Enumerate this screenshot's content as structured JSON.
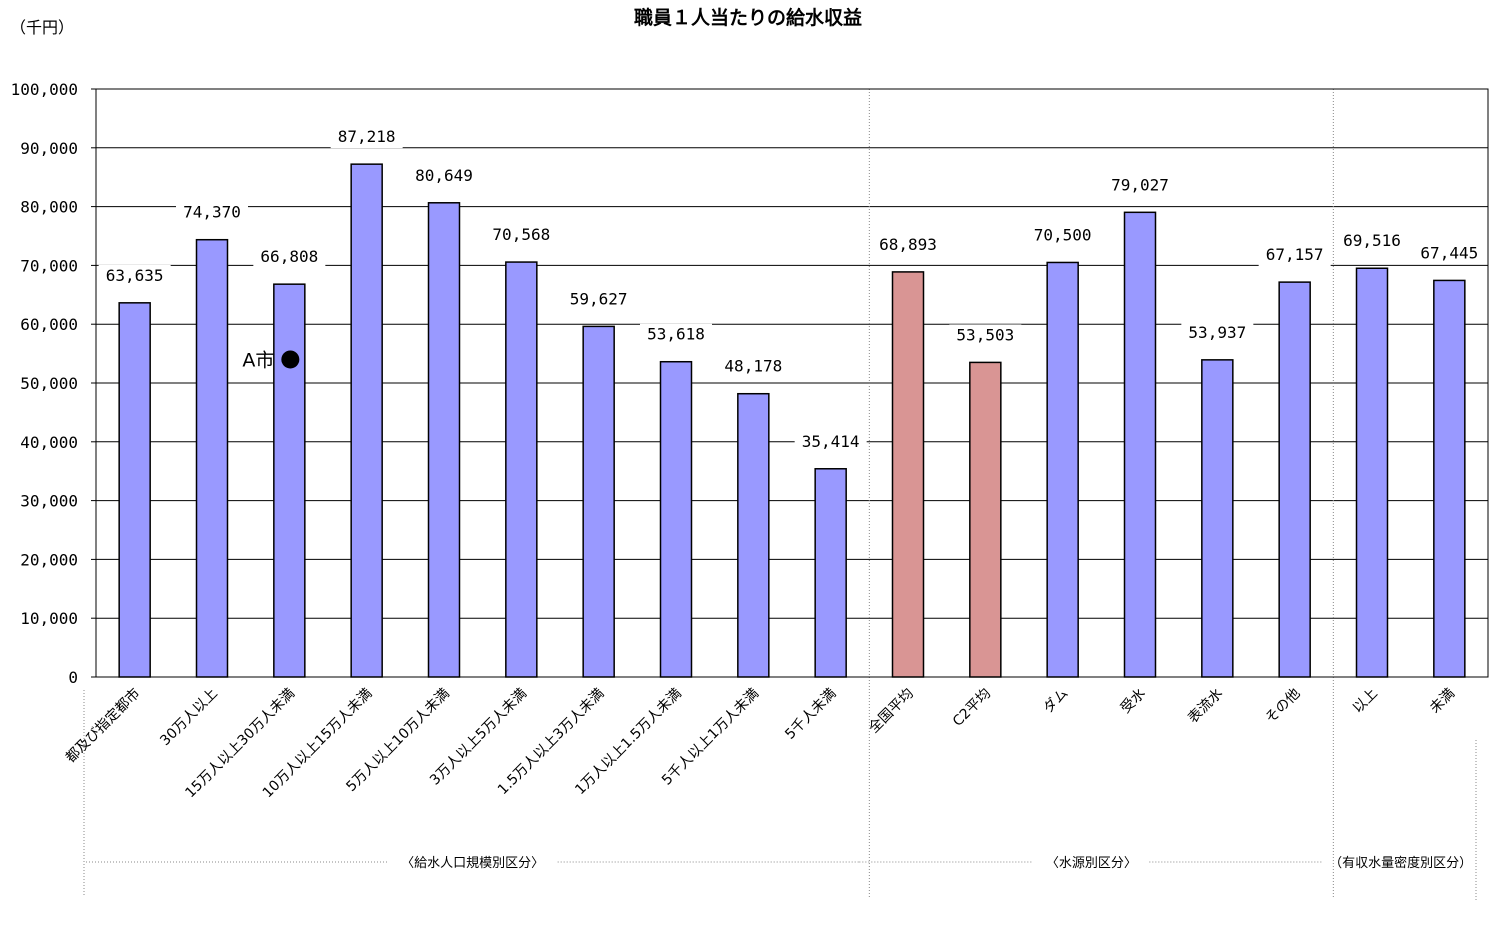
{
  "chart_data": {
    "type": "bar",
    "title": "職員１人当たりの給水収益",
    "unit_label": "（千円）",
    "ylim": [
      0,
      100000
    ],
    "y_ticks": [
      "100,000",
      "90,000",
      "80,000",
      "70,000",
      "60,000",
      "50,000",
      "40,000",
      "30,000",
      "20,000",
      "10,000",
      "0"
    ],
    "y_tick_values": [
      100000,
      90000,
      80000,
      70000,
      60000,
      50000,
      40000,
      30000,
      20000,
      10000,
      0
    ],
    "grid": true,
    "categories": [
      "都及び指定都市",
      "30万人以上",
      "15万人以上30万人未満",
      "10万人以上15万人未満",
      "5万人以上10万人未満",
      "3万人以上5万人未満",
      "1.5万人以上3万人未満",
      "1万人以上1.5万人未満",
      "5千人以上1万人未満",
      "5千人未満",
      "全国平均",
      "C2平均",
      "ダム",
      "受水",
      "表流水",
      "その他",
      "以上",
      "未満"
    ],
    "values": [
      63635,
      74370,
      66808,
      87218,
      80649,
      70568,
      59627,
      53618,
      48178,
      35414,
      68893,
      53503,
      70500,
      79027,
      53937,
      67157,
      69516,
      67445
    ],
    "value_labels": [
      "63,635",
      "74,370",
      "66,808",
      "87,218",
      "80,649",
      "70,568",
      "59,627",
      "53,618",
      "48,178",
      "35,414",
      "68,893",
      "53,503",
      "70,500",
      "79,027",
      "53,937",
      "67,157",
      "69,516",
      "67,445"
    ],
    "bar_colors": [
      "#9999ff",
      "#9999ff",
      "#9999ff",
      "#9999ff",
      "#9999ff",
      "#9999ff",
      "#9999ff",
      "#9999ff",
      "#9999ff",
      "#9999ff",
      "#d99594",
      "#d99594",
      "#9999ff",
      "#9999ff",
      "#9999ff",
      "#9999ff",
      "#9999ff",
      "#9999ff"
    ],
    "groups": [
      {
        "label": "〈給水人口規模別区分〉",
        "start": 0,
        "end": 9
      },
      {
        "label": "〈水源別区分〉",
        "start": 10,
        "end": 15
      },
      {
        "label": "（有収水量密度別区分）",
        "start": 16,
        "end": 17
      }
    ],
    "annotation": {
      "label": "A市",
      "category_index": 2,
      "value": 54000,
      "marker_color": "#000000"
    }
  }
}
